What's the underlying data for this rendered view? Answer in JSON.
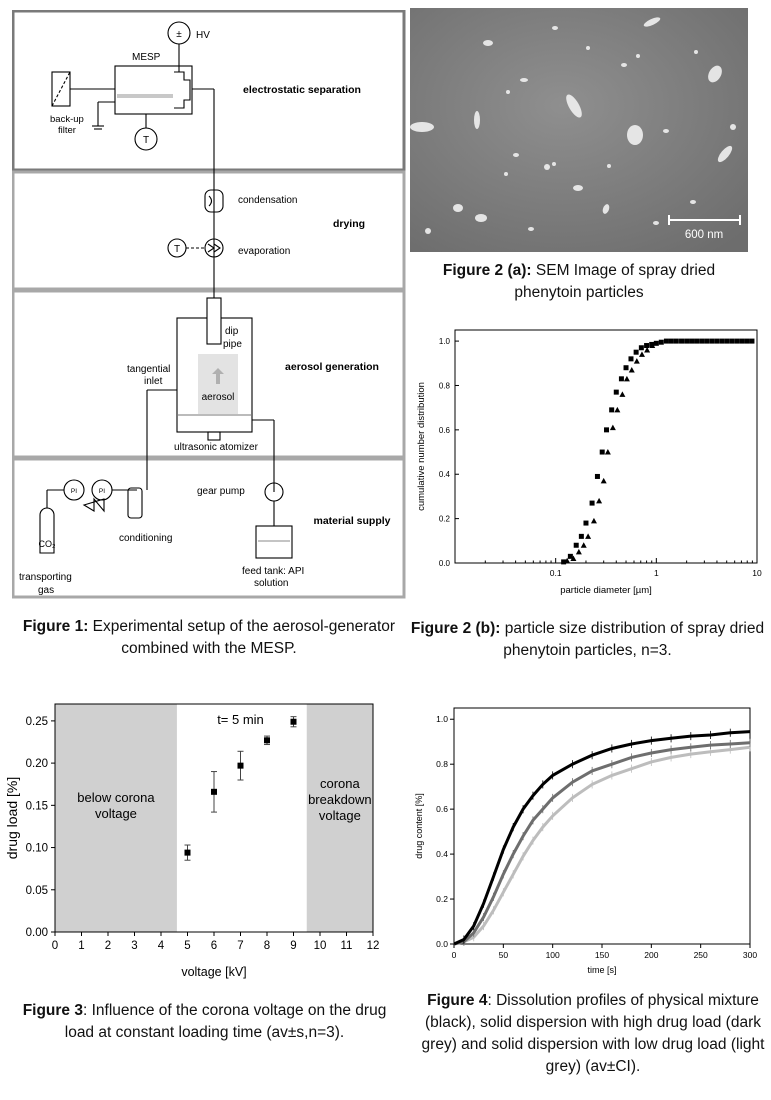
{
  "figure1": {
    "stages": [
      {
        "label": "electrostatic separation"
      },
      {
        "label": "drying"
      },
      {
        "label": "aerosol generation"
      },
      {
        "label": "material supply"
      }
    ],
    "components": {
      "hv": "HV",
      "mesp": "MESP",
      "backup_filter": [
        "back-up",
        "filter"
      ],
      "temperature_symbol": "T",
      "condensation": "condensation",
      "evaporation": "evaporation",
      "dip_pipe": [
        "dip",
        "pipe"
      ],
      "tangential_inlet": [
        "tangential",
        "inlet"
      ],
      "aerosol": "aerosol",
      "ultrasonic_atomizer": "ultrasonic atomizer",
      "gear_pump": "gear pump",
      "pressure_indicator": "PI",
      "conditioning": "conditioning",
      "co2": "CO₂",
      "transporting_gas": [
        "transporting",
        "gas"
      ],
      "feed_tank": [
        "feed tank: API",
        "solution"
      ]
    },
    "caption_label": "Figure 1:",
    "caption_text": " Experimental setup of the aerosol-generator combined with the MESP."
  },
  "figure2a": {
    "scale_bar": "600 nm",
    "caption_label": "Figure 2 (a):",
    "caption_text": " SEM Image of spray dried phenytoin particles"
  },
  "figure2b": {
    "caption_label": "Figure 2 (b):",
    "caption_text": " particle size distribution of spray dried phenytoin particles, n=3."
  },
  "figure3": {
    "caption_label": "Figure 3",
    "caption_text": ": Influence of the corona voltage on the drug load at constant loading time (av±s,n=3)."
  },
  "figure4": {
    "caption_label": "Figure 4",
    "caption_text": ":  Dissolution profiles of physical mixture (black), solid dispersion with high drug load (dark grey) and solid dispersion with low drug load (light grey) (av±CI)."
  },
  "chart_data": [
    {
      "id": "fig2b",
      "type": "scatter",
      "xlabel": "particle diameter [µm]",
      "ylabel": "cumulative number distribution",
      "xscale": "log",
      "xlim": [
        0.01,
        10
      ],
      "ylim": [
        0,
        1.05
      ],
      "xticks": [
        {
          "v": 0.1,
          "l": "0.1"
        },
        {
          "v": 1,
          "l": "1"
        },
        {
          "v": 10,
          "l": "10"
        }
      ],
      "yticks": [
        0,
        0.2,
        0.4,
        0.6,
        0.8,
        1.0
      ],
      "series": [
        {
          "marker": "square",
          "x": [
            0.12,
            0.14,
            0.16,
            0.18,
            0.2,
            0.23,
            0.26,
            0.29,
            0.32,
            0.36,
            0.4,
            0.45,
            0.5,
            0.56,
            0.63,
            0.71,
            0.8,
            0.9,
            1.0,
            1.12,
            1.26,
            1.41,
            1.58,
            1.78,
            2.0,
            2.24,
            2.51,
            2.82,
            3.16,
            3.55,
            3.98,
            4.47,
            5.01,
            5.62,
            6.31,
            7.08,
            7.94,
            8.91
          ],
          "y": [
            0.005,
            0.03,
            0.08,
            0.12,
            0.18,
            0.27,
            0.39,
            0.5,
            0.6,
            0.69,
            0.77,
            0.83,
            0.88,
            0.92,
            0.95,
            0.97,
            0.98,
            0.985,
            0.99,
            0.995,
            1.0,
            1.0,
            1.0,
            1.0,
            1.0,
            1.0,
            1.0,
            1.0,
            1.0,
            1.0,
            1.0,
            1.0,
            1.0,
            1.0,
            1.0,
            1.0,
            1.0,
            1.0
          ]
        },
        {
          "marker": "triangle",
          "x": [
            0.13,
            0.15,
            0.17,
            0.19,
            0.21,
            0.24,
            0.27,
            0.3,
            0.33,
            0.37,
            0.41,
            0.46,
            0.51,
            0.57,
            0.64,
            0.72,
            0.81,
            0.91
          ],
          "y": [
            0.01,
            0.02,
            0.05,
            0.08,
            0.12,
            0.19,
            0.28,
            0.37,
            0.5,
            0.61,
            0.69,
            0.76,
            0.83,
            0.87,
            0.91,
            0.94,
            0.96,
            0.98
          ]
        }
      ]
    },
    {
      "id": "fig3",
      "type": "scatter",
      "xlabel": "voltage [kV]",
      "ylabel": "drug load [%]",
      "xlim": [
        0,
        12
      ],
      "ylim": [
        0,
        0.27
      ],
      "xticks": [
        0,
        1,
        2,
        3,
        4,
        5,
        6,
        7,
        8,
        9,
        10,
        11,
        12
      ],
      "yticks": [
        0.0,
        0.05,
        0.1,
        0.15,
        0.2,
        0.25
      ],
      "annotation": "t= 5  min",
      "regions": [
        {
          "from": 0,
          "to": 4.6,
          "label": [
            "below corona",
            "voltage"
          ]
        },
        {
          "from": 9.5,
          "to": 12,
          "label": [
            "corona",
            "breakdown",
            "voltage"
          ]
        }
      ],
      "points": [
        {
          "x": 5,
          "y": 0.094,
          "err": 0.009
        },
        {
          "x": 6,
          "y": 0.166,
          "err": 0.024
        },
        {
          "x": 7,
          "y": 0.197,
          "err": 0.017
        },
        {
          "x": 8,
          "y": 0.227,
          "err": 0.005
        },
        {
          "x": 9,
          "y": 0.249,
          "err": 0.006
        }
      ]
    },
    {
      "id": "fig4",
      "type": "line",
      "xlabel": "time [s]",
      "ylabel": "drug content [%]",
      "xlim": [
        0,
        300
      ],
      "ylim": [
        0,
        1.05
      ],
      "xticks": [
        0,
        50,
        100,
        150,
        200,
        250,
        300
      ],
      "yticks": [
        0.0,
        0.2,
        0.4,
        0.6,
        0.8,
        1.0
      ],
      "series": [
        {
          "color": "#000000",
          "t": [
            0,
            10,
            20,
            30,
            40,
            50,
            60,
            70,
            80,
            90,
            100,
            120,
            140,
            160,
            180,
            200,
            220,
            240,
            260,
            280,
            300
          ],
          "y": [
            0.0,
            0.02,
            0.08,
            0.18,
            0.3,
            0.42,
            0.52,
            0.6,
            0.66,
            0.71,
            0.75,
            0.8,
            0.84,
            0.87,
            0.89,
            0.905,
            0.915,
            0.925,
            0.93,
            0.94,
            0.945
          ]
        },
        {
          "color": "#6e6e6e",
          "t": [
            0,
            10,
            20,
            30,
            40,
            50,
            60,
            70,
            80,
            90,
            100,
            120,
            140,
            160,
            180,
            200,
            220,
            240,
            260,
            280,
            300
          ],
          "y": [
            0.0,
            0.01,
            0.05,
            0.12,
            0.21,
            0.31,
            0.4,
            0.48,
            0.55,
            0.6,
            0.65,
            0.72,
            0.77,
            0.8,
            0.83,
            0.85,
            0.865,
            0.875,
            0.885,
            0.89,
            0.895
          ]
        },
        {
          "color": "#bdbdbd",
          "t": [
            0,
            10,
            20,
            30,
            40,
            50,
            60,
            70,
            80,
            90,
            100,
            120,
            140,
            160,
            180,
            200,
            220,
            240,
            260,
            280,
            300
          ],
          "y": [
            0.0,
            0.01,
            0.03,
            0.08,
            0.15,
            0.23,
            0.31,
            0.39,
            0.46,
            0.52,
            0.57,
            0.65,
            0.71,
            0.75,
            0.78,
            0.81,
            0.83,
            0.845,
            0.855,
            0.865,
            0.875
          ]
        }
      ]
    }
  ]
}
